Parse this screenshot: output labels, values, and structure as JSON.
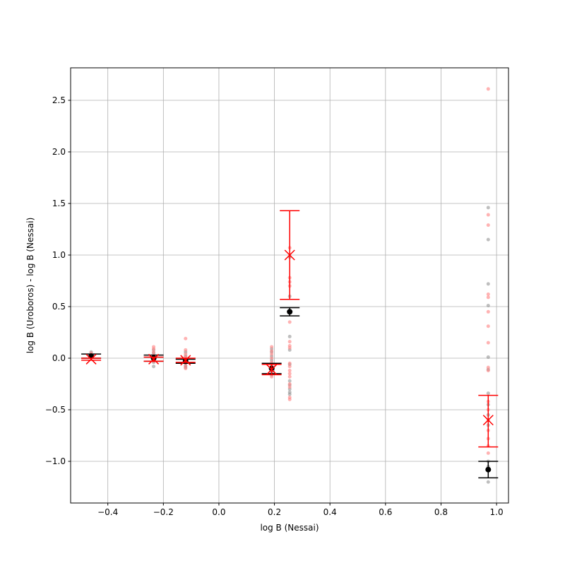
{
  "chart_data": {
    "type": "scatter",
    "title": "",
    "xlabel": "log B (Nessai)",
    "ylabel": "log B (Uroboros) - log B (Nessai)",
    "xlim": [
      -0.534,
      1.043
    ],
    "ylim": [
      -1.404,
      2.815
    ],
    "grid": true,
    "xticks": [
      -0.4,
      -0.2,
      0.0,
      0.2,
      0.4,
      0.6,
      0.8,
      1.0
    ],
    "xtick_labels": [
      "−0.4",
      "−0.2",
      "0.0",
      "0.2",
      "0.4",
      "0.6",
      "0.8",
      "1.0"
    ],
    "yticks": [
      -1.0,
      -0.5,
      0.0,
      0.5,
      1.0,
      1.5,
      2.0,
      2.5
    ],
    "ytick_labels": [
      "−1.0",
      "−0.5",
      "0.0",
      "0.5",
      "1.0",
      "1.5",
      "2.0",
      "2.5"
    ],
    "colors": {
      "black_series": "#000000",
      "red_series": "#ff0000",
      "gray_points": "#808080",
      "red_points": "#ff8080"
    },
    "groups": [
      {
        "x": -0.46,
        "black_mean": 0.02,
        "black_err": [
          0.0,
          0.04
        ],
        "red_mean": -0.01,
        "red_err": [
          -0.02,
          0.0
        ],
        "gray_points": [
          0.06,
          0.03
        ],
        "red_points": [
          0.05,
          0.01
        ]
      },
      {
        "x": -0.235,
        "black_mean": 0.0,
        "black_err": [
          -0.03,
          0.03
        ],
        "red_mean": -0.01,
        "red_err": [
          -0.03,
          0.01
        ],
        "gray_points": [
          0.08,
          0.05,
          0.02,
          -0.01,
          -0.04,
          -0.08
        ],
        "red_points": [
          0.11,
          0.09,
          0.06,
          0.03,
          0.0,
          -0.03
        ]
      },
      {
        "x": -0.12,
        "black_mean": -0.03,
        "black_err": [
          -0.05,
          -0.01
        ],
        "red_mean": -0.02,
        "red_err": [
          -0.04,
          0.0
        ],
        "gray_points": [
          0.06,
          0.02,
          -0.01,
          -0.04,
          -0.07,
          -0.09
        ],
        "red_points": [
          0.19,
          0.08,
          0.04,
          0.01,
          -0.02,
          -0.05,
          -0.08,
          -0.1
        ]
      },
      {
        "x": 0.19,
        "black_mean": -0.1,
        "black_err": [
          -0.15,
          -0.05
        ],
        "red_mean": -0.11,
        "red_err": [
          -0.16,
          -0.06
        ],
        "gray_points": [
          0.09,
          0.06,
          0.02,
          -0.02,
          -0.06,
          -0.1,
          -0.14,
          -0.16
        ],
        "red_points": [
          0.11,
          0.07,
          0.04,
          0.0,
          -0.04,
          -0.08,
          -0.12,
          -0.18
        ]
      },
      {
        "x": 0.255,
        "black_mean": 0.45,
        "black_err": [
          0.41,
          0.49
        ],
        "red_mean": 1.0,
        "red_err": [
          0.57,
          1.43
        ],
        "gray_points": [
          0.98,
          0.6,
          0.21,
          0.08,
          -0.06,
          -0.22,
          -0.26,
          -0.3,
          -0.33,
          -0.35
        ],
        "red_points": [
          1.07,
          0.78,
          0.74,
          0.7,
          0.44,
          0.35,
          0.16,
          0.12,
          0.1,
          -0.05,
          -0.08,
          -0.12,
          -0.15,
          -0.18,
          -0.25,
          -0.28,
          -0.38,
          -0.4
        ]
      },
      {
        "x": 0.97,
        "black_mean": -1.08,
        "black_err": [
          -1.16,
          -1.0
        ],
        "red_mean": -0.6,
        "red_err": [
          -0.86,
          -0.36
        ],
        "gray_points": [
          1.46,
          1.15,
          0.72,
          0.51,
          0.01,
          -0.11,
          -0.34,
          -0.45,
          -0.55,
          -0.65,
          -1.0,
          -1.05,
          -1.2
        ],
        "red_points": [
          2.61,
          1.39,
          1.29,
          0.62,
          0.59,
          0.45,
          0.31,
          0.15,
          -0.09,
          -0.12,
          -0.42,
          -0.5,
          -0.6,
          -0.7,
          -0.78,
          -0.85,
          -0.92
        ]
      }
    ]
  }
}
